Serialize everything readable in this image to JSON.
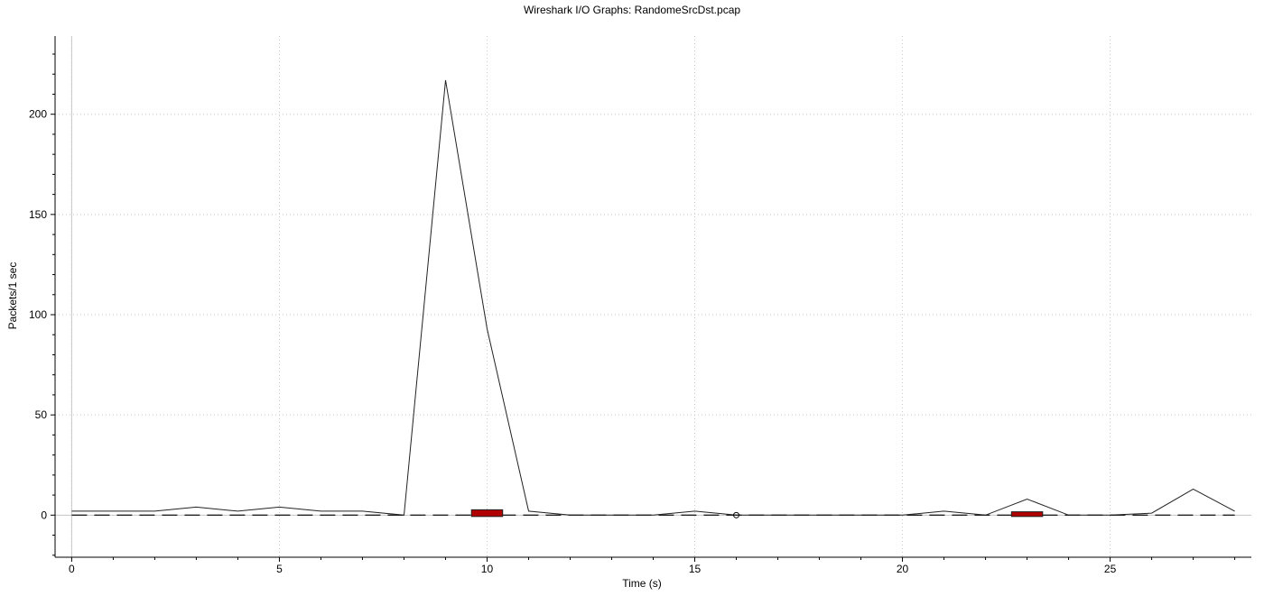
{
  "chart_data": {
    "type": "line",
    "title": "Wireshark I/O Graphs: RandomeSrcDst.pcap",
    "xlabel": "Time (s)",
    "ylabel": "Packets/1 sec",
    "xlim": [
      -0.4,
      28.4
    ],
    "ylim": [
      -21,
      239
    ],
    "x_ticks": [
      0,
      5,
      10,
      15,
      20,
      25
    ],
    "y_ticks": [
      0,
      50,
      100,
      150,
      200
    ],
    "grid": true,
    "series": [
      {
        "style": "solid-line",
        "color": "#222222",
        "x": [
          0,
          1,
          2,
          3,
          4,
          5,
          6,
          7,
          8,
          9,
          10,
          11,
          12,
          13,
          14,
          15,
          16,
          17,
          18,
          19,
          20,
          21,
          22,
          23,
          24,
          25,
          26,
          27,
          28
        ],
        "values": [
          2,
          2,
          2,
          4,
          2,
          4,
          2,
          2,
          0,
          217,
          93,
          2,
          0,
          0,
          0,
          2,
          0,
          0,
          0,
          0,
          0,
          2,
          0,
          8,
          0,
          0,
          1,
          13,
          2
        ]
      },
      {
        "style": "dashed-line",
        "color": "#222222",
        "x": [
          0,
          28
        ],
        "values": [
          0,
          0
        ]
      },
      {
        "style": "bar",
        "color": "#b00000",
        "x": [
          10,
          23
        ],
        "values": [
          2,
          1
        ]
      },
      {
        "style": "circle-marker",
        "color": "#000000",
        "x": [
          16
        ],
        "values": [
          0
        ]
      }
    ]
  }
}
